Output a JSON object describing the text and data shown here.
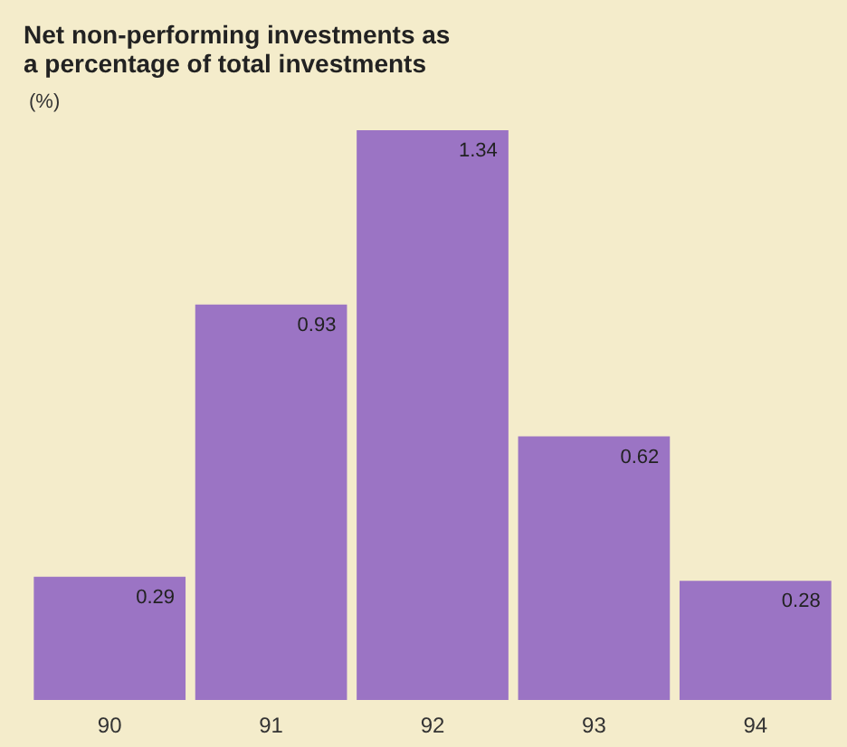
{
  "chart_data": {
    "type": "bar",
    "title": "Net non-performing investments as\na percentage of total investments",
    "ylabel": "(%)",
    "categories": [
      "90",
      "91",
      "92",
      "93",
      "94"
    ],
    "values": [
      0.29,
      0.93,
      1.34,
      0.62,
      0.28
    ],
    "color": "#9b74c4",
    "data_labels": true
  }
}
